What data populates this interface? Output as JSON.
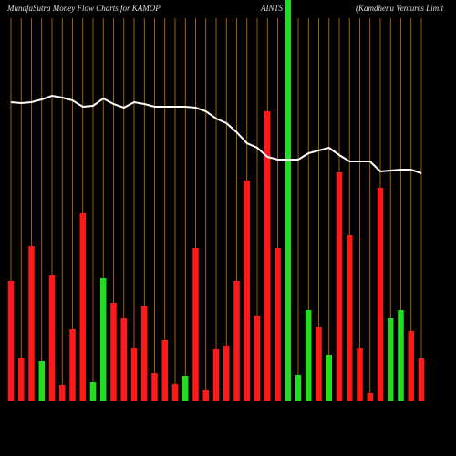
{
  "chart_data": {
    "type": "bar",
    "title_parts": [
      "MunafaSutra  Money Flow  Charts for KAMOP",
      "AINTS",
      "(Kamdhenu  Ventures  Limit"
    ],
    "categories": [
      null,
      null,
      null,
      null,
      null,
      null,
      null,
      null,
      null,
      null,
      null,
      null,
      null,
      null,
      null,
      null,
      null,
      null,
      null,
      null,
      null,
      null,
      null,
      null,
      null,
      null,
      null,
      null,
      null,
      null,
      null,
      null,
      null,
      null,
      null,
      null,
      null,
      null,
      null,
      null,
      null
    ],
    "values": [
      132,
      48,
      170,
      44,
      138,
      18,
      79,
      206,
      21,
      135,
      108,
      91,
      58,
      104,
      31,
      67,
      19,
      28,
      168,
      12,
      57,
      61,
      132,
      242,
      94,
      318,
      168,
      440,
      29,
      100,
      81,
      51,
      251,
      182,
      58,
      9,
      234,
      91,
      100,
      77,
      47
    ],
    "colors": [
      "#ff1a1a",
      "#ff1a1a",
      "#ff1a1a",
      "#22dd22",
      "#ff1a1a",
      "#ff1a1a",
      "#ff1a1a",
      "#ff1a1a",
      "#22dd22",
      "#22dd22",
      "#ff1a1a",
      "#ff1a1a",
      "#ff1a1a",
      "#ff1a1a",
      "#ff1a1a",
      "#ff1a1a",
      "#ff1a1a",
      "#22dd22",
      "#ff1a1a",
      "#ff1a1a",
      "#ff1a1a",
      "#ff1a1a",
      "#ff1a1a",
      "#ff1a1a",
      "#ff1a1a",
      "#ff1a1a",
      "#ff1a1a",
      "#22dd22",
      "#22dd22",
      "#22dd22",
      "#ff1a1a",
      "#22dd22",
      "#ff1a1a",
      "#ff1a1a",
      "#ff1a1a",
      "#ff1a1a",
      "#ff1a1a",
      "#22dd22",
      "#22dd22",
      "#ff1a1a",
      "#ff1a1a"
    ],
    "line": {
      "color": "#ffffff",
      "values": [
        328,
        327,
        328,
        331,
        335,
        333,
        330,
        323,
        324,
        332,
        326,
        322,
        328,
        326,
        323,
        323,
        323,
        323,
        322,
        318,
        310,
        305,
        295,
        283,
        278,
        268,
        265,
        265,
        265,
        272,
        275,
        278,
        270,
        263,
        263,
        263,
        252,
        253,
        254,
        254,
        250
      ]
    },
    "ylim": [
      0,
      440
    ],
    "gridcolor": "#c87800"
  }
}
